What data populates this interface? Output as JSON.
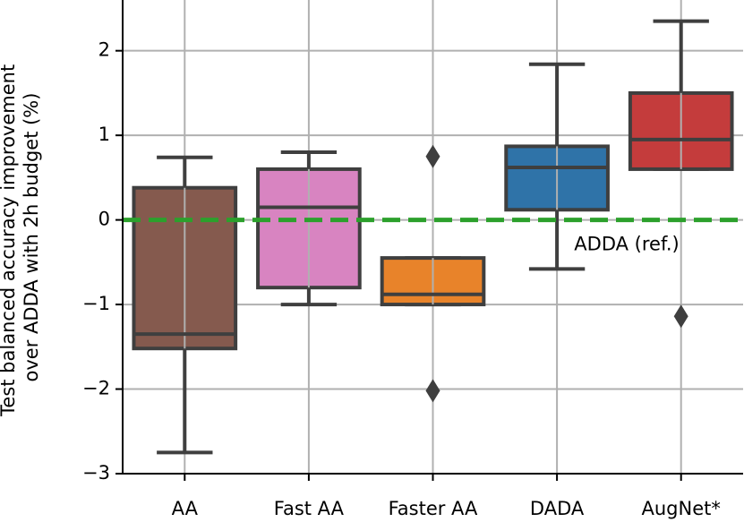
{
  "chart_data": {
    "type": "box",
    "ylabel": [
      "Test balanced accuracy improvement",
      "over ADDA with 2h budget (%)"
    ],
    "categories": [
      "AA",
      "Fast AA",
      "Faster AA",
      "DADA",
      "AugNet*"
    ],
    "boxes": [
      {
        "whisker_low": -2.75,
        "q1": -1.52,
        "median": -1.35,
        "q3": 0.38,
        "whisker_high": 0.74,
        "outliers": [],
        "color": "#855a4e"
      },
      {
        "whisker_low": -1.0,
        "q1": -0.8,
        "median": 0.15,
        "q3": 0.6,
        "whisker_high": 0.8,
        "outliers": [],
        "color": "#d884c1"
      },
      {
        "whisker_low": -1.0,
        "q1": -1.0,
        "median": -0.88,
        "q3": -0.45,
        "whisker_high": -0.45,
        "outliers": [
          0.75,
          -2.02
        ],
        "color": "#e8832a"
      },
      {
        "whisker_low": -0.58,
        "q1": 0.12,
        "median": 0.62,
        "q3": 0.87,
        "whisker_high": 1.84,
        "outliers": [],
        "color": "#2f73a8"
      },
      {
        "whisker_low": 0.6,
        "q1": 0.6,
        "median": 0.95,
        "q3": 1.5,
        "whisker_high": 2.35,
        "outliers": [
          -1.14
        ],
        "color": "#c43c3c"
      }
    ],
    "reference_line": {
      "value": 0,
      "label": "ADDA (ref.)",
      "color": "#2ca02c"
    },
    "ylim": [
      -3,
      2.6
    ],
    "yticks": [
      {
        "value": -3,
        "label": "−3"
      },
      {
        "value": -2,
        "label": "−2"
      },
      {
        "value": -1,
        "label": "−1"
      },
      0,
      1,
      2
    ],
    "grid": true
  }
}
